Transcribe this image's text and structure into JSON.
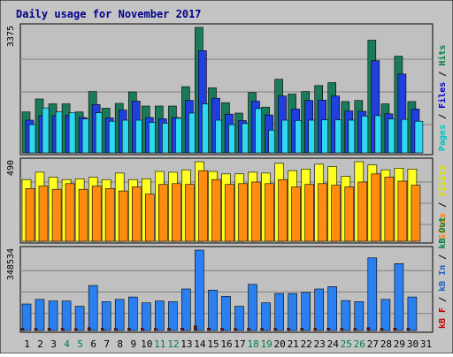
{
  "chart_data": {
    "type": "bar",
    "title": "Daily usage for November 2017",
    "categories": [
      "1",
      "2",
      "3",
      "4",
      "5",
      "6",
      "7",
      "8",
      "9",
      "10",
      "11",
      "12",
      "13",
      "14",
      "15",
      "16",
      "17",
      "18",
      "19",
      "20",
      "21",
      "22",
      "23",
      "24",
      "25",
      "26",
      "27",
      "28",
      "29",
      "30",
      "31"
    ],
    "weekend_days": [
      "4",
      "5",
      "11",
      "12",
      "18",
      "19",
      "25",
      "26"
    ],
    "panels": [
      {
        "name": "hits-files-pages",
        "ymax_label": "3375",
        "ymax": 3375,
        "legend": [
          {
            "text": "Pages",
            "color": "#00c0c0"
          },
          {
            "text": " / ",
            "color": "#000000"
          },
          {
            "text": "Files",
            "color": "#0000d0"
          },
          {
            "text": " / ",
            "color": "#000000"
          },
          {
            "text": "Hits",
            "color": "#008040"
          }
        ],
        "series": [
          {
            "name": "Hits",
            "color": "#1a7a5a",
            "values": [
              1100,
              1450,
              1320,
              1320,
              1100,
              1650,
              1200,
              1330,
              1640,
              1260,
              1260,
              1260,
              1780,
              3375,
              1750,
              1350,
              1070,
              1620,
              1230,
              1980,
              1580,
              1650,
              1810,
              1890,
              1380,
              1410,
              3030,
              1320,
              2600,
              1380,
              0
            ]
          },
          {
            "name": "Files",
            "color": "#1f3fe0",
            "values": [
              880,
              1000,
              1000,
              1010,
              950,
              1300,
              940,
              1150,
              1390,
              950,
              920,
              950,
              1410,
              2750,
              1470,
              1040,
              870,
              1390,
              1020,
              1530,
              1180,
              1410,
              1420,
              1530,
              1130,
              1120,
              2480,
              1050,
              2120,
              1180,
              0
            ]
          },
          {
            "name": "Pages",
            "color": "#2ed8f0",
            "values": [
              760,
              1210,
              1100,
              1080,
              910,
              1080,
              850,
              880,
              880,
              820,
              800,
              930,
              1070,
              1320,
              880,
              760,
              790,
              1190,
              610,
              880,
              870,
              880,
              890,
              890,
              880,
              990,
              1000,
              910,
              900,
              850,
              0
            ]
          }
        ]
      },
      {
        "name": "visits-sites",
        "ymax_label": "490",
        "ymax": 490,
        "legend": [
          {
            "text": "Sites",
            "color": "#ff8000"
          },
          {
            "text": " / ",
            "color": "#000000"
          },
          {
            "text": "Visits",
            "color": "#e0e000"
          }
        ],
        "series": [
          {
            "name": "Visits",
            "color": "#ffff20",
            "values": [
              380,
              425,
              395,
              380,
              385,
              395,
              380,
              420,
              380,
              385,
              430,
              425,
              440,
              490,
              430,
              415,
              415,
              425,
              420,
              480,
              435,
              445,
              475,
              460,
              400,
              490,
              470,
              440,
              450,
              445,
              0
            ]
          },
          {
            "name": "Sites",
            "color": "#ff8c10",
            "values": [
              325,
              340,
              320,
              355,
              320,
              340,
              325,
              310,
              335,
              290,
              350,
              355,
              350,
              435,
              380,
              350,
              355,
              365,
              355,
              380,
              335,
              350,
              355,
              345,
              335,
              365,
              415,
              395,
              370,
              345,
              0
            ]
          }
        ]
      },
      {
        "name": "kb",
        "ymax_label": "348534",
        "ymax": 348534,
        "legend": [
          {
            "text": "kB F",
            "color": "#c00000"
          },
          {
            "text": " / ",
            "color": "#000000"
          },
          {
            "text": "kB In",
            "color": "#2060c0"
          },
          {
            "text": " / ",
            "color": "#000000"
          },
          {
            "text": "kB Out",
            "color": "#008040"
          }
        ],
        "series": [
          {
            "name": "kB In",
            "color": "#2a80f0",
            "values": [
              115000,
              135000,
              128000,
              128000,
              105000,
              195000,
              125000,
              135000,
              145000,
              120000,
              128000,
              125000,
              180000,
              348534,
              175000,
              148000,
              105000,
              200000,
              120000,
              160000,
              160000,
              165000,
              180000,
              190000,
              130000,
              125000,
              315000,
              135000,
              290000,
              145000,
              0
            ]
          },
          {
            "name": "kB F",
            "color": "#8a1010",
            "values": [
              9000,
              9000,
              9000,
              9000,
              8000,
              12000,
              9000,
              9000,
              9000,
              9000,
              9000,
              9000,
              10000,
              20000,
              10000,
              9000,
              8000,
              9000,
              9000,
              9000,
              9000,
              9000,
              9000,
              10000,
              9000,
              9000,
              12000,
              9000,
              10000,
              9000,
              0
            ]
          }
        ]
      }
    ]
  }
}
